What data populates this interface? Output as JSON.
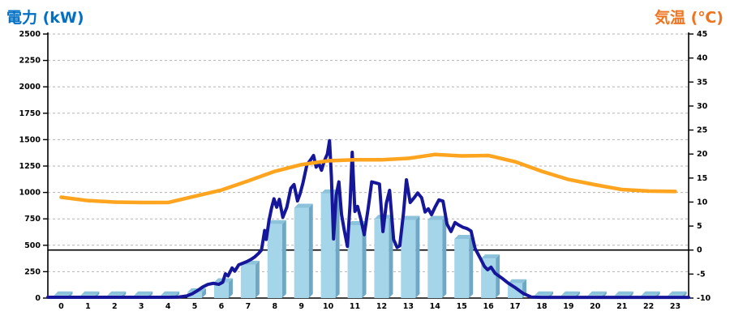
{
  "chart": {
    "left_axis_title": "電力 (kW)",
    "right_axis_title": "気温 (℃)"
  },
  "chart_data": {
    "type": "combo",
    "title": "",
    "x_categories": [
      "0",
      "1",
      "2",
      "3",
      "4",
      "5",
      "6",
      "7",
      "8",
      "9",
      "10",
      "11",
      "12",
      "13",
      "14",
      "15",
      "16",
      "17",
      "18",
      "19",
      "20",
      "21",
      "22",
      "23"
    ],
    "left_axis": {
      "label": "電力 (kW)",
      "min": 0,
      "max": 2500,
      "tick_step": 250,
      "ticks": [
        0,
        250,
        500,
        750,
        1000,
        1250,
        1500,
        1750,
        2000,
        2250,
        2500
      ]
    },
    "right_axis": {
      "label": "気温 (℃)",
      "min": -10,
      "max": 45,
      "tick_step": 5,
      "ticks": [
        -10,
        -5,
        0,
        5,
        10,
        15,
        20,
        25,
        30,
        35,
        40,
        45
      ]
    },
    "grid": {
      "horizontal": true,
      "style": "dashed"
    },
    "zero_temp_reference_line": 0,
    "legend": "none",
    "series": [
      {
        "name": "power-bars",
        "type": "bar",
        "unit": "kW",
        "axis": "left",
        "values": [
          25,
          25,
          25,
          25,
          25,
          55,
          150,
          315,
          700,
          855,
          990,
          690,
          750,
          740,
          740,
          560,
          375,
          140,
          25,
          25,
          25,
          25,
          25,
          25
        ]
      },
      {
        "name": "power-line",
        "type": "line",
        "unit": "kW",
        "axis": "left",
        "points": [
          [
            -0.5,
            8
          ],
          [
            0,
            8
          ],
          [
            0.5,
            8
          ],
          [
            1,
            8
          ],
          [
            1.5,
            8
          ],
          [
            2,
            8
          ],
          [
            2.5,
            8
          ],
          [
            3,
            8
          ],
          [
            3.5,
            8
          ],
          [
            4,
            8
          ],
          [
            4.4,
            10
          ],
          [
            4.7,
            20
          ],
          [
            4.9,
            40
          ],
          [
            5.1,
            70
          ],
          [
            5.3,
            105
          ],
          [
            5.5,
            130
          ],
          [
            5.7,
            140
          ],
          [
            5.9,
            130
          ],
          [
            6.05,
            150
          ],
          [
            6.15,
            230
          ],
          [
            6.25,
            210
          ],
          [
            6.4,
            285
          ],
          [
            6.5,
            255
          ],
          [
            6.65,
            315
          ],
          [
            6.8,
            330
          ],
          [
            6.95,
            345
          ],
          [
            7.1,
            365
          ],
          [
            7.25,
            390
          ],
          [
            7.4,
            425
          ],
          [
            7.5,
            455
          ],
          [
            7.57,
            560
          ],
          [
            7.62,
            640
          ],
          [
            7.68,
            555
          ],
          [
            7.78,
            730
          ],
          [
            7.88,
            855
          ],
          [
            7.97,
            940
          ],
          [
            8.07,
            860
          ],
          [
            8.17,
            935
          ],
          [
            8.3,
            765
          ],
          [
            8.45,
            860
          ],
          [
            8.6,
            1040
          ],
          [
            8.72,
            1075
          ],
          [
            8.85,
            920
          ],
          [
            8.95,
            990
          ],
          [
            9.05,
            1085
          ],
          [
            9.2,
            1260
          ],
          [
            9.33,
            1305
          ],
          [
            9.45,
            1350
          ],
          [
            9.55,
            1240
          ],
          [
            9.65,
            1275
          ],
          [
            9.75,
            1210
          ],
          [
            9.85,
            1295
          ],
          [
            9.97,
            1365
          ],
          [
            10.05,
            1490
          ],
          [
            10.12,
            1150
          ],
          [
            10.2,
            560
          ],
          [
            10.3,
            975
          ],
          [
            10.4,
            1100
          ],
          [
            10.5,
            790
          ],
          [
            10.6,
            645
          ],
          [
            10.72,
            490
          ],
          [
            10.82,
            895
          ],
          [
            10.9,
            1380
          ],
          [
            11.0,
            820
          ],
          [
            11.1,
            868
          ],
          [
            11.22,
            750
          ],
          [
            11.35,
            600
          ],
          [
            11.5,
            855
          ],
          [
            11.63,
            1100
          ],
          [
            11.78,
            1090
          ],
          [
            11.92,
            1080
          ],
          [
            12.05,
            630
          ],
          [
            12.18,
            900
          ],
          [
            12.3,
            1020
          ],
          [
            12.45,
            555
          ],
          [
            12.58,
            480
          ],
          [
            12.68,
            495
          ],
          [
            12.82,
            805
          ],
          [
            12.93,
            1120
          ],
          [
            13.07,
            905
          ],
          [
            13.22,
            950
          ],
          [
            13.35,
            995
          ],
          [
            13.5,
            950
          ],
          [
            13.63,
            815
          ],
          [
            13.75,
            845
          ],
          [
            13.87,
            790
          ],
          [
            14.0,
            860
          ],
          [
            14.15,
            930
          ],
          [
            14.3,
            918
          ],
          [
            14.45,
            700
          ],
          [
            14.6,
            630
          ],
          [
            14.75,
            715
          ],
          [
            14.9,
            690
          ],
          [
            15.05,
            670
          ],
          [
            15.2,
            658
          ],
          [
            15.35,
            635
          ],
          [
            15.5,
            470
          ],
          [
            15.7,
            375
          ],
          [
            15.85,
            300
          ],
          [
            15.97,
            268
          ],
          [
            16.1,
            292
          ],
          [
            16.25,
            235
          ],
          [
            16.5,
            190
          ],
          [
            16.75,
            140
          ],
          [
            17.0,
            100
          ],
          [
            17.3,
            45
          ],
          [
            17.6,
            10
          ],
          [
            18,
            7
          ],
          [
            18.5,
            7
          ],
          [
            19,
            7
          ],
          [
            19.5,
            7
          ],
          [
            20,
            7
          ],
          [
            20.5,
            7
          ],
          [
            21,
            7
          ],
          [
            21.5,
            7
          ],
          [
            22,
            7
          ],
          [
            22.5,
            7
          ],
          [
            23,
            7
          ],
          [
            23.5,
            7
          ]
        ]
      },
      {
        "name": "temperature",
        "type": "line",
        "unit": "°C",
        "axis": "right",
        "values": [
          11.0,
          10.3,
          10.0,
          9.9,
          9.9,
          11.2,
          12.5,
          14.4,
          16.4,
          17.8,
          18.6,
          18.8,
          18.8,
          19.1,
          19.9,
          19.6,
          19.7,
          18.4,
          16.4,
          14.7,
          13.6,
          12.6,
          12.3,
          12.2
        ]
      }
    ],
    "colors": {
      "bar_front": "#A5D5E9",
      "bar_side": "#6FA8C5",
      "bar_top": "#8CC3DA",
      "power_line": "#16169B",
      "temperature_line": "#FFA41E",
      "grid": "#B3B3B3",
      "axis": "#000000",
      "zero_line": "#000000",
      "left_title": "#0070C5",
      "right_title": "#EE7420",
      "tick_text": "#000000",
      "background": "#FFFFFF"
    }
  }
}
